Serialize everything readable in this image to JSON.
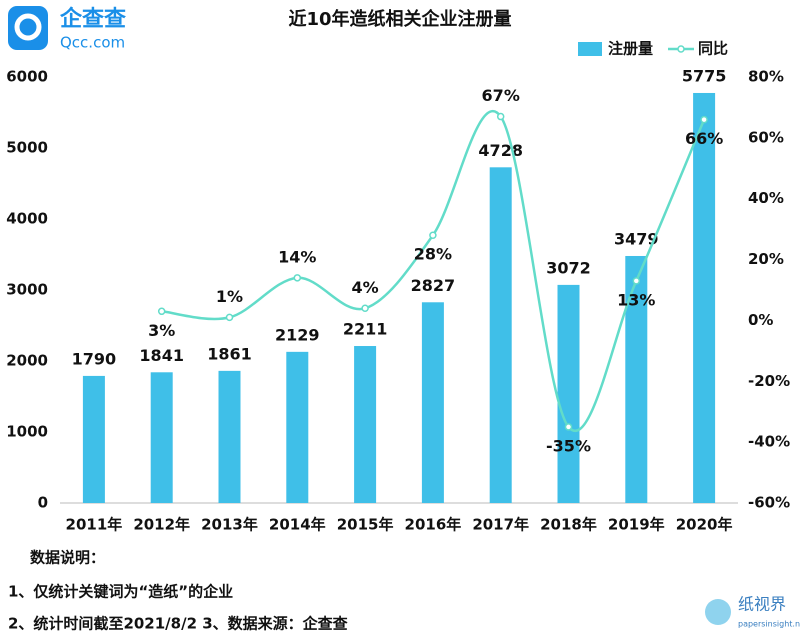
{
  "brand": {
    "name": "企查查",
    "site": "Qcc.com"
  },
  "chart_data": {
    "type": "bar-line",
    "title": "近10年造纸相关企业注册量",
    "categories": [
      "2011年",
      "2012年",
      "2013年",
      "2014年",
      "2015年",
      "2016年",
      "2017年",
      "2018年",
      "2019年",
      "2020年"
    ],
    "series": [
      {
        "name": "注册量",
        "type": "bar",
        "color": "#3fbfe8",
        "values": [
          1790,
          1841,
          1861,
          2129,
          2211,
          2827,
          4728,
          3072,
          3479,
          5775
        ]
      },
      {
        "name": "同比",
        "type": "line",
        "axis": "y2",
        "color": "#62dcc9",
        "values": [
          null,
          3,
          1,
          14,
          4,
          28,
          67,
          -35,
          13,
          66
        ],
        "value_labels": [
          null,
          "3%",
          "1%",
          "14%",
          "4%",
          "28%",
          "67%",
          "-35%",
          "13%",
          "66%"
        ]
      }
    ],
    "ylim": [
      0,
      6000
    ],
    "yticks": [
      0,
      1000,
      2000,
      3000,
      4000,
      5000,
      6000
    ],
    "y2lim": [
      -60,
      80
    ],
    "y2ticks": [
      {
        "value": -60,
        "label": "-60%"
      },
      {
        "value": -40,
        "label": "-40%"
      },
      {
        "value": -20,
        "label": "-20%"
      },
      {
        "value": 0,
        "label": "0%"
      },
      {
        "value": 20,
        "label": "20%"
      },
      {
        "value": 40,
        "label": "40%"
      },
      {
        "value": 60,
        "label": "60%"
      },
      {
        "value": 80,
        "label": "80%"
      }
    ],
    "legend": "top-right"
  },
  "notes": [
    "数据说明：",
    "1、仅统计关键词为“造纸”的企业",
    "2、统计时间截至2021/8/2  3、数据来源：企查查"
  ],
  "watermark": {
    "name": "纸视界",
    "site": "papersinsight.net"
  }
}
